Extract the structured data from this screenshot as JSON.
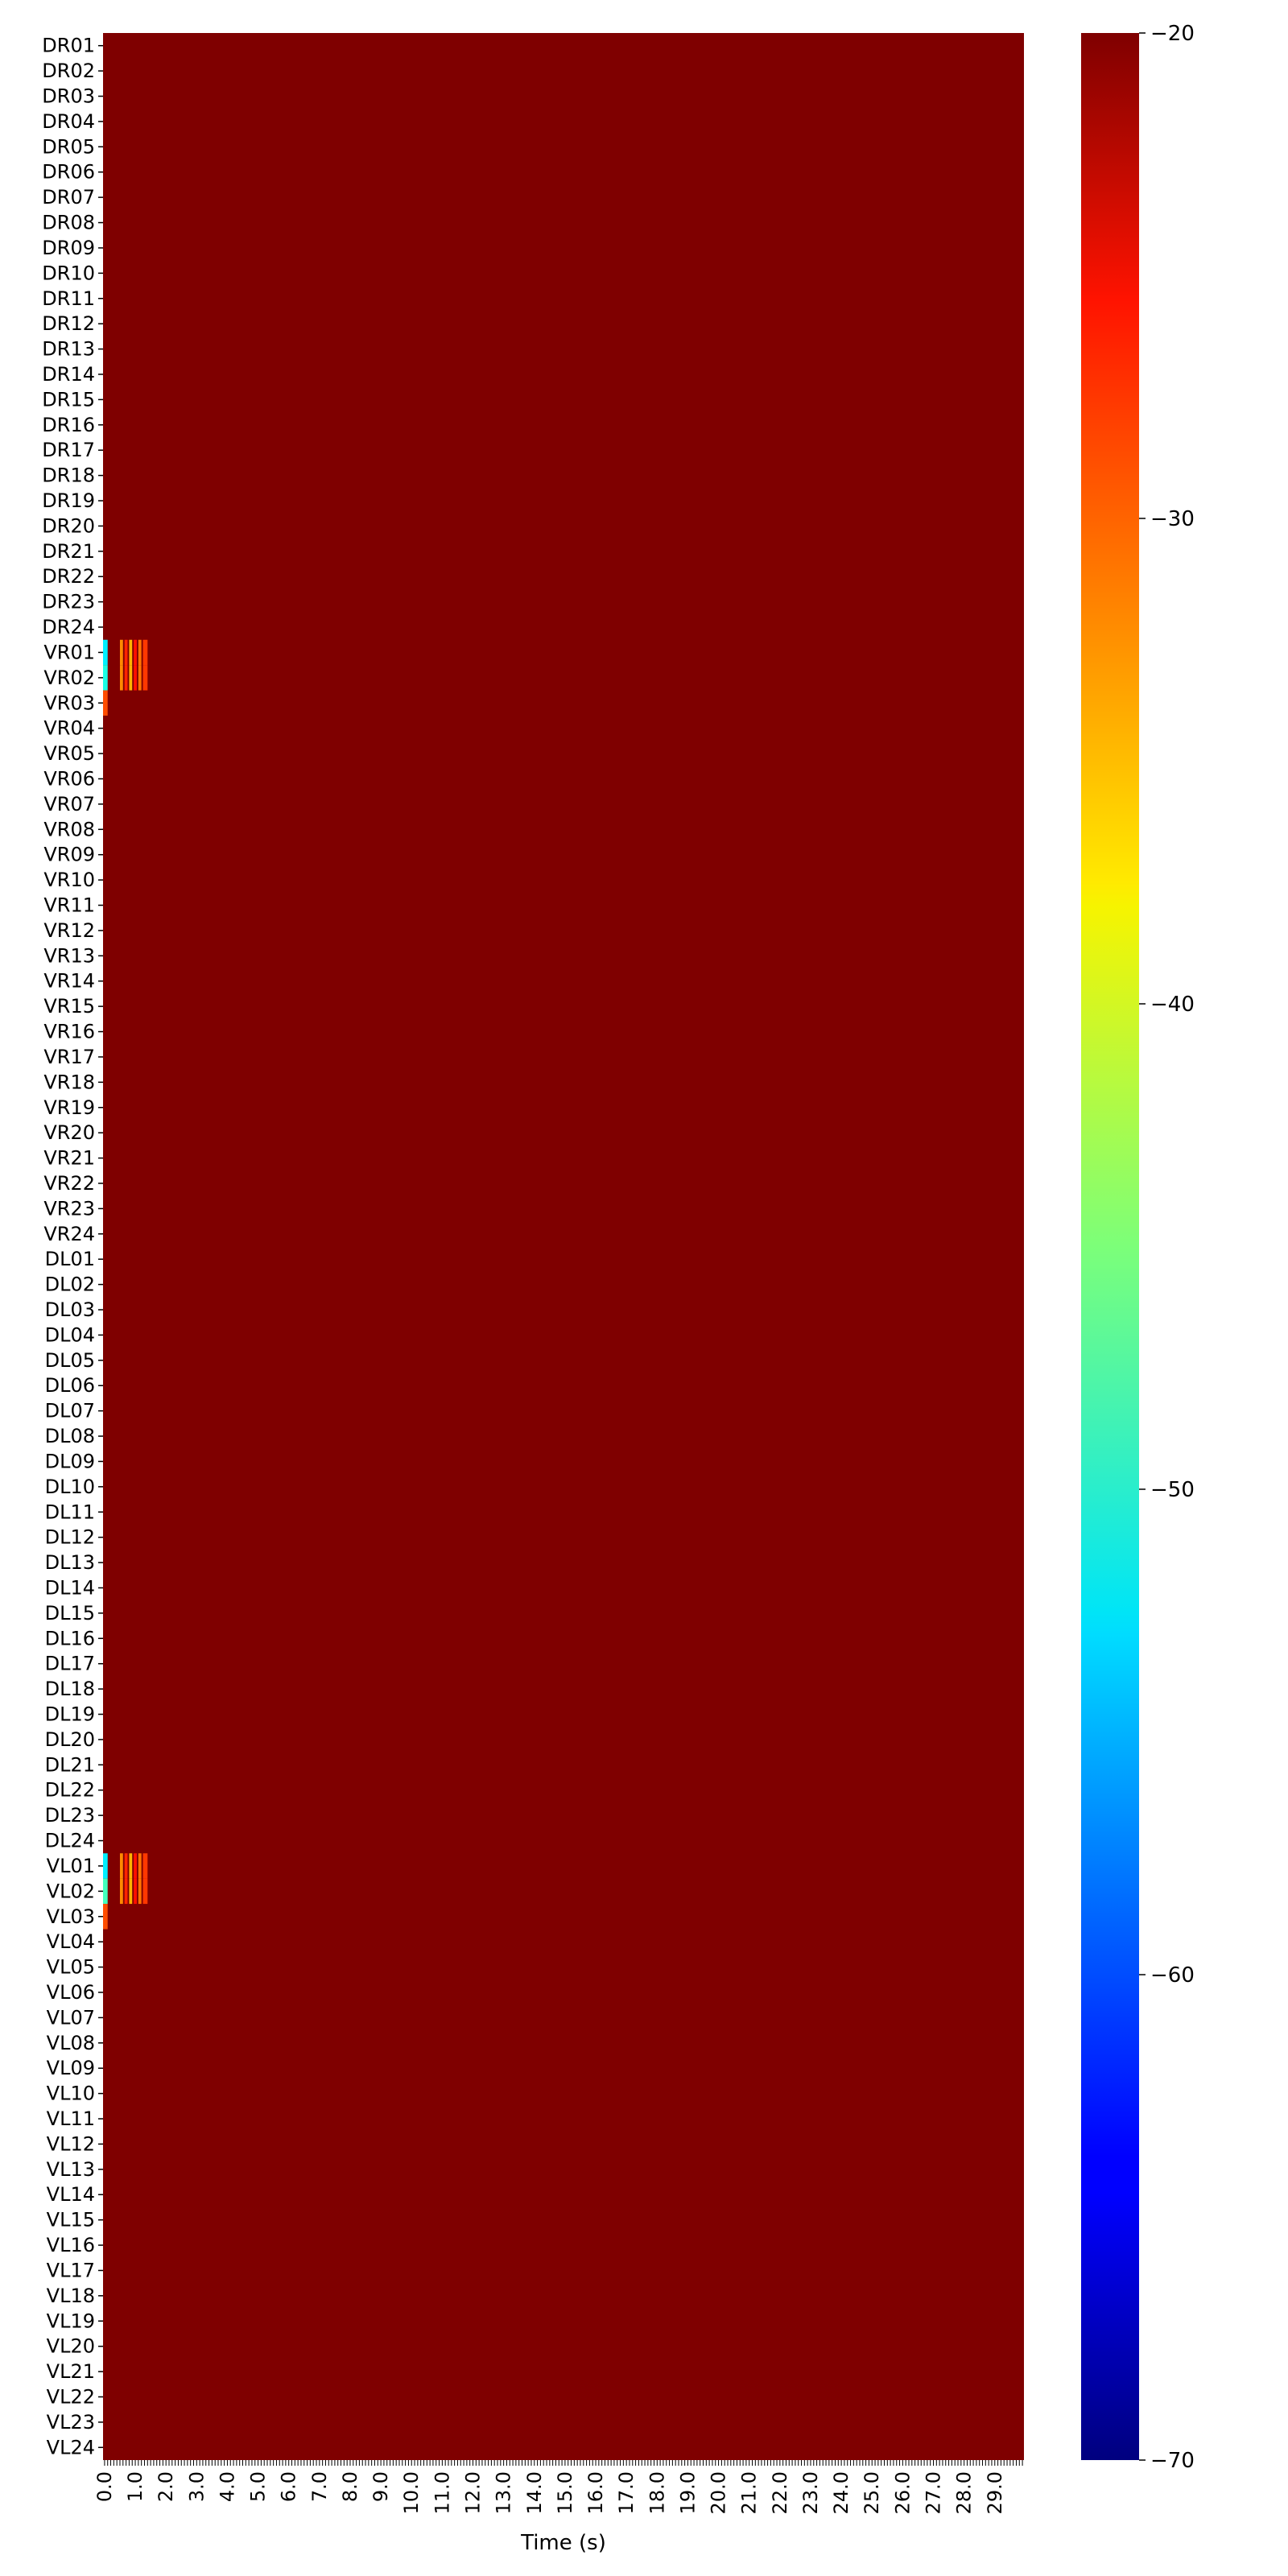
{
  "chart_data": {
    "type": "heatmap",
    "title": "",
    "xlabel": "Time (s)",
    "ylabel": "",
    "x_range": [
      0.0,
      30.0
    ],
    "x_tick_labels": [
      "0.0",
      "1.0",
      "2.0",
      "3.0",
      "4.0",
      "5.0",
      "6.0",
      "7.0",
      "8.0",
      "9.0",
      "10.0",
      "11.0",
      "12.0",
      "13.0",
      "14.0",
      "15.0",
      "16.0",
      "17.0",
      "18.0",
      "19.0",
      "20.0",
      "21.0",
      "22.0",
      "23.0",
      "24.0",
      "25.0",
      "26.0",
      "27.0",
      "28.0",
      "29.0"
    ],
    "rows": [
      "DR01",
      "DR02",
      "DR03",
      "DR04",
      "DR05",
      "DR06",
      "DR07",
      "DR08",
      "DR09",
      "DR10",
      "DR11",
      "DR12",
      "DR13",
      "DR14",
      "DR15",
      "DR16",
      "DR17",
      "DR18",
      "DR19",
      "DR20",
      "DR21",
      "DR22",
      "DR23",
      "DR24",
      "VR01",
      "VR02",
      "VR03",
      "VR04",
      "VR05",
      "VR06",
      "VR07",
      "VR08",
      "VR09",
      "VR10",
      "VR11",
      "VR12",
      "VR13",
      "VR14",
      "VR15",
      "VR16",
      "VR17",
      "VR18",
      "VR19",
      "VR20",
      "VR21",
      "VR22",
      "VR23",
      "VR24",
      "DL01",
      "DL02",
      "DL03",
      "DL04",
      "DL05",
      "DL06",
      "DL07",
      "DL08",
      "DL09",
      "DL10",
      "DL11",
      "DL12",
      "DL13",
      "DL14",
      "DL15",
      "DL16",
      "DL17",
      "DL18",
      "DL19",
      "DL20",
      "DL21",
      "DL22",
      "DL23",
      "DL24",
      "VL01",
      "VL02",
      "VL03",
      "VL04",
      "VL05",
      "VL06",
      "VL07",
      "VL08",
      "VL09",
      "VL10",
      "VL11",
      "VL12",
      "VL13",
      "VL14",
      "VL15",
      "VL16",
      "VL17",
      "VL18",
      "VL19",
      "VL20",
      "VL21",
      "VL22",
      "VL23",
      "VL24"
    ],
    "background_value": -20,
    "colormap": "jet",
    "colorbar": {
      "min": -70,
      "max": -20,
      "ticks": [
        -20,
        -30,
        -40,
        -50,
        -60,
        -70
      ],
      "tick_labels": [
        "−20",
        "−30",
        "−40",
        "−50",
        "−60",
        "−70"
      ]
    },
    "events": [
      {
        "row": "VR01",
        "t_start": 0.0,
        "t_end": 0.15,
        "value": -52
      },
      {
        "row": "VR02",
        "t_start": 0.0,
        "t_end": 0.15,
        "value": -50
      },
      {
        "row": "VR03",
        "t_start": 0.0,
        "t_end": 0.15,
        "value": -30
      },
      {
        "row": "VR01",
        "t_start": 0.55,
        "t_end": 0.65,
        "value": -33
      },
      {
        "row": "VR02",
        "t_start": 0.55,
        "t_end": 0.65,
        "value": -33
      },
      {
        "row": "VR01",
        "t_start": 0.7,
        "t_end": 0.8,
        "value": -28
      },
      {
        "row": "VR02",
        "t_start": 0.7,
        "t_end": 0.8,
        "value": -28
      },
      {
        "row": "VR01",
        "t_start": 0.85,
        "t_end": 0.95,
        "value": -35
      },
      {
        "row": "VR02",
        "t_start": 0.85,
        "t_end": 0.95,
        "value": -35
      },
      {
        "row": "VR01",
        "t_start": 1.0,
        "t_end": 1.1,
        "value": -27
      },
      {
        "row": "VR02",
        "t_start": 1.0,
        "t_end": 1.1,
        "value": -27
      },
      {
        "row": "VR01",
        "t_start": 1.15,
        "t_end": 1.25,
        "value": -32
      },
      {
        "row": "VR02",
        "t_start": 1.15,
        "t_end": 1.25,
        "value": -32
      },
      {
        "row": "VR01",
        "t_start": 1.3,
        "t_end": 1.45,
        "value": -29
      },
      {
        "row": "VR02",
        "t_start": 1.3,
        "t_end": 1.45,
        "value": -29
      },
      {
        "row": "VL01",
        "t_start": 0.0,
        "t_end": 0.15,
        "value": -52
      },
      {
        "row": "VL02",
        "t_start": 0.0,
        "t_end": 0.15,
        "value": -48
      },
      {
        "row": "VL03",
        "t_start": 0.0,
        "t_end": 0.15,
        "value": -30
      },
      {
        "row": "VL01",
        "t_start": 0.55,
        "t_end": 0.65,
        "value": -33
      },
      {
        "row": "VL02",
        "t_start": 0.55,
        "t_end": 0.65,
        "value": -33
      },
      {
        "row": "VL01",
        "t_start": 0.7,
        "t_end": 0.8,
        "value": -28
      },
      {
        "row": "VL02",
        "t_start": 0.7,
        "t_end": 0.8,
        "value": -28
      },
      {
        "row": "VL01",
        "t_start": 0.85,
        "t_end": 0.95,
        "value": -35
      },
      {
        "row": "VL02",
        "t_start": 0.85,
        "t_end": 0.95,
        "value": -35
      },
      {
        "row": "VL01",
        "t_start": 1.0,
        "t_end": 1.1,
        "value": -27
      },
      {
        "row": "VL02",
        "t_start": 1.0,
        "t_end": 1.1,
        "value": -27
      },
      {
        "row": "VL01",
        "t_start": 1.15,
        "t_end": 1.25,
        "value": -32
      },
      {
        "row": "VL02",
        "t_start": 1.15,
        "t_end": 1.25,
        "value": -32
      },
      {
        "row": "VL01",
        "t_start": 1.3,
        "t_end": 1.45,
        "value": -29
      },
      {
        "row": "VL02",
        "t_start": 1.3,
        "t_end": 1.45,
        "value": -29
      }
    ],
    "grid": false,
    "legend": "colorbar-right"
  }
}
